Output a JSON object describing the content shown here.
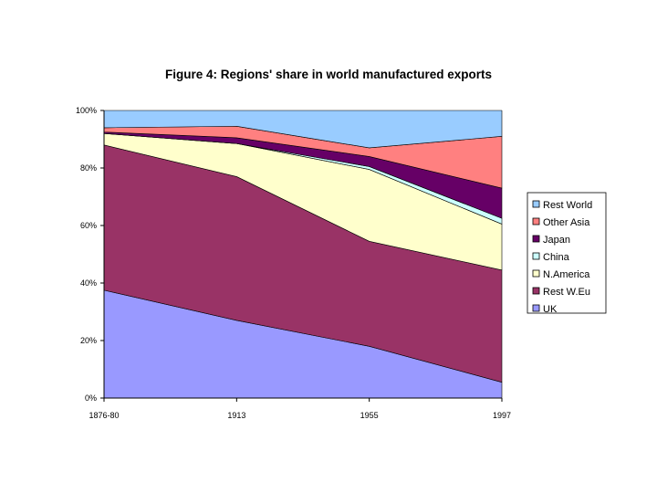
{
  "chart_data": {
    "type": "area",
    "stacked": true,
    "percent": true,
    "title": "Figure 4: Regions' share in world manufactured exports",
    "xlabel": "",
    "ylabel": "",
    "categories": [
      "1876-80",
      "1913",
      "1955",
      "1997"
    ],
    "ylim": [
      0,
      100
    ],
    "yticks": [
      "0%",
      "20%",
      "40%",
      "60%",
      "80%",
      "100%"
    ],
    "legend_position": "right",
    "series": [
      {
        "name": "UK",
        "color": "#9999ff",
        "values": [
          37.5,
          27.0,
          18.0,
          5.5
        ]
      },
      {
        "name": "Rest W.Eu",
        "color": "#993366",
        "values": [
          50.5,
          50.0,
          36.5,
          39.0
        ]
      },
      {
        "name": "N.America",
        "color": "#ffffcc",
        "values": [
          4.0,
          11.5,
          25.0,
          16.0
        ]
      },
      {
        "name": "China",
        "color": "#ccffff",
        "values": [
          0.0,
          0.0,
          1.0,
          2.0
        ]
      },
      {
        "name": "Japan",
        "color": "#660066",
        "values": [
          0.5,
          2.0,
          3.5,
          10.5
        ]
      },
      {
        "name": "Other Asia",
        "color": "#ff8080",
        "values": [
          1.5,
          4.0,
          3.0,
          18.0
        ]
      },
      {
        "name": "Rest World",
        "color": "#99ccff",
        "values": [
          6.0,
          5.5,
          13.0,
          9.0
        ]
      }
    ]
  }
}
